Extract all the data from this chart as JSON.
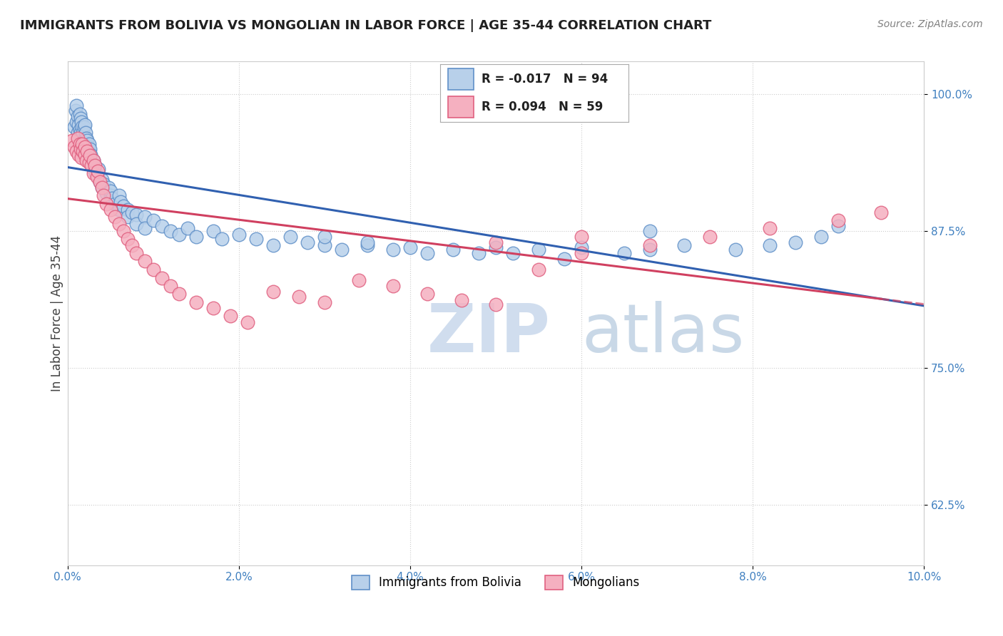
{
  "title": "IMMIGRANTS FROM BOLIVIA VS MONGOLIAN IN LABOR FORCE | AGE 35-44 CORRELATION CHART",
  "source": "Source: ZipAtlas.com",
  "ylabel": "In Labor Force | Age 35-44",
  "xlim": [
    0.0,
    0.1
  ],
  "ylim": [
    0.57,
    1.03
  ],
  "xticks": [
    0.0,
    0.02,
    0.04,
    0.06,
    0.08,
    0.1
  ],
  "xticklabels": [
    "0.0%",
    "2.0%",
    "4.0%",
    "6.0%",
    "8.0%",
    "10.0%"
  ],
  "yticks": [
    0.625,
    0.75,
    0.875,
    1.0
  ],
  "yticklabels": [
    "62.5%",
    "75.0%",
    "87.5%",
    "100.0%"
  ],
  "bolivia_R": -0.017,
  "bolivia_N": 94,
  "mongolia_R": 0.094,
  "mongolia_N": 59,
  "bolivia_color": "#b8d0ea",
  "mongolia_color": "#f5b0c0",
  "bolivia_edge": "#6090c8",
  "mongolia_edge": "#e06080",
  "bolivia_line_color": "#3060b0",
  "mongolia_line_color": "#d04060",
  "watermark_zip": "ZIP",
  "watermark_atlas": "atlas",
  "legend_bolivia": "Immigrants from Bolivia",
  "legend_mongolia": "Mongolians",
  "bolivia_x": [
    0.0008,
    0.0009,
    0.001,
    0.001,
    0.0012,
    0.0012,
    0.0013,
    0.0014,
    0.0014,
    0.0015,
    0.0015,
    0.0016,
    0.0016,
    0.0017,
    0.0017,
    0.0018,
    0.0018,
    0.0019,
    0.002,
    0.002,
    0.0021,
    0.0021,
    0.0022,
    0.0022,
    0.0023,
    0.0024,
    0.0025,
    0.0025,
    0.0026,
    0.0027,
    0.003,
    0.003,
    0.0032,
    0.0033,
    0.0035,
    0.0036,
    0.0038,
    0.004,
    0.004,
    0.0042,
    0.0045,
    0.0048,
    0.005,
    0.005,
    0.0052,
    0.0055,
    0.006,
    0.006,
    0.0062,
    0.0065,
    0.007,
    0.007,
    0.0075,
    0.008,
    0.008,
    0.009,
    0.009,
    0.01,
    0.011,
    0.012,
    0.013,
    0.014,
    0.015,
    0.017,
    0.018,
    0.02,
    0.022,
    0.024,
    0.026,
    0.028,
    0.03,
    0.032,
    0.035,
    0.038,
    0.04,
    0.042,
    0.045,
    0.048,
    0.05,
    0.055,
    0.06,
    0.065,
    0.068,
    0.072,
    0.078,
    0.082,
    0.085,
    0.088,
    0.052,
    0.058,
    0.03,
    0.035,
    0.068,
    0.09
  ],
  "bolivia_y": [
    0.97,
    0.985,
    0.975,
    0.99,
    0.965,
    0.98,
    0.972,
    0.968,
    0.982,
    0.978,
    0.965,
    0.962,
    0.975,
    0.97,
    0.958,
    0.965,
    0.955,
    0.97,
    0.96,
    0.972,
    0.955,
    0.965,
    0.952,
    0.96,
    0.958,
    0.952,
    0.948,
    0.955,
    0.95,
    0.945,
    0.94,
    0.932,
    0.935,
    0.928,
    0.925,
    0.932,
    0.92,
    0.915,
    0.922,
    0.918,
    0.91,
    0.915,
    0.908,
    0.912,
    0.905,
    0.9,
    0.908,
    0.895,
    0.902,
    0.898,
    0.895,
    0.888,
    0.892,
    0.89,
    0.882,
    0.888,
    0.878,
    0.885,
    0.88,
    0.875,
    0.872,
    0.878,
    0.87,
    0.875,
    0.868,
    0.872,
    0.868,
    0.862,
    0.87,
    0.865,
    0.862,
    0.858,
    0.862,
    0.858,
    0.86,
    0.855,
    0.858,
    0.855,
    0.86,
    0.858,
    0.86,
    0.855,
    0.858,
    0.862,
    0.858,
    0.862,
    0.865,
    0.87,
    0.855,
    0.85,
    0.87,
    0.865,
    0.875,
    0.88
  ],
  "mongolia_x": [
    0.0005,
    0.0008,
    0.001,
    0.0012,
    0.0013,
    0.0014,
    0.0015,
    0.0016,
    0.0017,
    0.0018,
    0.002,
    0.002,
    0.0022,
    0.0023,
    0.0025,
    0.0026,
    0.0028,
    0.003,
    0.003,
    0.0032,
    0.0034,
    0.0035,
    0.0038,
    0.004,
    0.0042,
    0.0045,
    0.005,
    0.0055,
    0.006,
    0.0065,
    0.007,
    0.0075,
    0.008,
    0.009,
    0.01,
    0.011,
    0.012,
    0.013,
    0.015,
    0.017,
    0.019,
    0.021,
    0.024,
    0.027,
    0.03,
    0.034,
    0.038,
    0.042,
    0.046,
    0.05,
    0.055,
    0.06,
    0.068,
    0.075,
    0.082,
    0.09,
    0.095,
    0.05,
    0.06
  ],
  "mongolia_y": [
    0.958,
    0.952,
    0.948,
    0.96,
    0.945,
    0.955,
    0.95,
    0.942,
    0.955,
    0.948,
    0.945,
    0.952,
    0.94,
    0.948,
    0.938,
    0.944,
    0.935,
    0.94,
    0.928,
    0.935,
    0.925,
    0.93,
    0.92,
    0.915,
    0.908,
    0.9,
    0.895,
    0.888,
    0.882,
    0.875,
    0.868,
    0.862,
    0.855,
    0.848,
    0.84,
    0.832,
    0.825,
    0.818,
    0.81,
    0.805,
    0.798,
    0.792,
    0.82,
    0.815,
    0.81,
    0.83,
    0.825,
    0.818,
    0.812,
    0.808,
    0.84,
    0.855,
    0.862,
    0.87,
    0.878,
    0.885,
    0.892,
    0.865,
    0.87
  ]
}
